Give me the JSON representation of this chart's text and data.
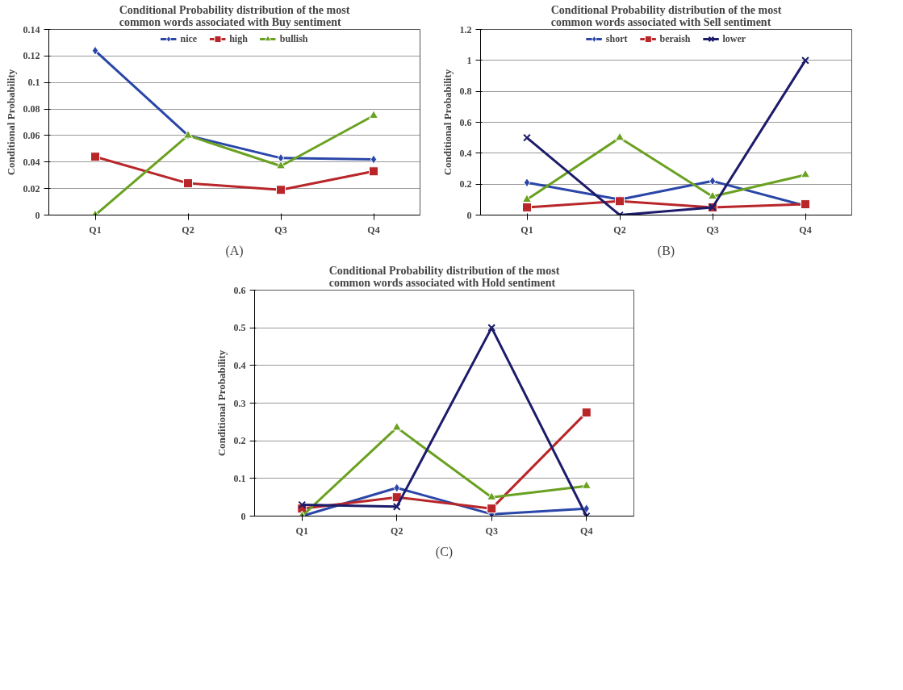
{
  "chart_data": [
    {
      "type": "line",
      "title": "Conditional Probability distribution of the most\ncommon words associated with Buy sentiment",
      "ylabel": "Conditional Probability",
      "categories": [
        "Q1",
        "Q2",
        "Q3",
        "Q4"
      ],
      "ylim": [
        0,
        0.14
      ],
      "yticks": [
        0,
        0.02,
        0.04,
        0.06,
        0.08,
        0.1,
        0.12,
        0.14
      ],
      "grid": "y",
      "legend": "top",
      "annotations": [
        "(A)"
      ],
      "series": [
        {
          "name": "nice",
          "color": "#2a46a8",
          "marker": "diamond",
          "values": [
            0.124,
            0.06,
            0.043,
            0.042
          ]
        },
        {
          "name": "high",
          "color": "#b8262a",
          "marker": "square",
          "values": [
            0.044,
            0.024,
            0.019,
            0.033
          ]
        },
        {
          "name": "bullish",
          "color": "#6aa121",
          "marker": "triangle",
          "values": [
            0,
            0.06,
            0.037,
            0.075
          ]
        }
      ]
    },
    {
      "type": "line",
      "title": "Conditional Probability distribution of the most\ncommon words associated with Sell sentiment",
      "ylabel": "Conditional Probability",
      "categories": [
        "Q1",
        "Q2",
        "Q3",
        "Q4"
      ],
      "ylim": [
        0,
        1.2
      ],
      "yticks": [
        0,
        0.2,
        0.4,
        0.6,
        0.8,
        1,
        1.2
      ],
      "grid": "y",
      "legend": "top",
      "annotations": [
        "(B)"
      ],
      "series": [
        {
          "name": "short",
          "color": "#2a46a8",
          "marker": "diamond",
          "values": [
            0.21,
            0.1,
            0.22,
            0.06
          ]
        },
        {
          "name": "beraish",
          "color": "#b8262a",
          "marker": "square",
          "values": [
            0.05,
            0.09,
            0.05,
            0.07
          ]
        },
        {
          "color": "#6aa121",
          "marker": "triangle",
          "values": [
            0.1,
            0.5,
            0.12,
            0.26
          ]
        },
        {
          "name": "lower",
          "color": "#1c1c6b",
          "marker": "cross",
          "values": [
            0.5,
            0.0,
            0.05,
            1.0
          ]
        }
      ]
    },
    {
      "type": "line",
      "title": "Conditional Probability distribution of the most\ncommon words associated with Hold sentiment",
      "ylabel": "Conditional Probability",
      "categories": [
        "Q1",
        "Q2",
        "Q3",
        "Q4"
      ],
      "ylim": [
        0,
        0.6
      ],
      "yticks": [
        0,
        0.1,
        0.2,
        0.3,
        0.4,
        0.5,
        0.6
      ],
      "grid": "y",
      "annotations": [
        "(C)"
      ],
      "series": [
        {
          "color": "#2a46a8",
          "marker": "diamond",
          "values": [
            0.0,
            0.075,
            0.005,
            0.02
          ]
        },
        {
          "color": "#b8262a",
          "marker": "square",
          "values": [
            0.02,
            0.05,
            0.02,
            0.275
          ]
        },
        {
          "color": "#6aa121",
          "marker": "triangle",
          "values": [
            0.0,
            0.235,
            0.05,
            0.08
          ]
        },
        {
          "color": "#1c1c6b",
          "marker": "cross",
          "values": [
            0.03,
            0.025,
            0.5,
            0.0
          ]
        }
      ]
    }
  ]
}
